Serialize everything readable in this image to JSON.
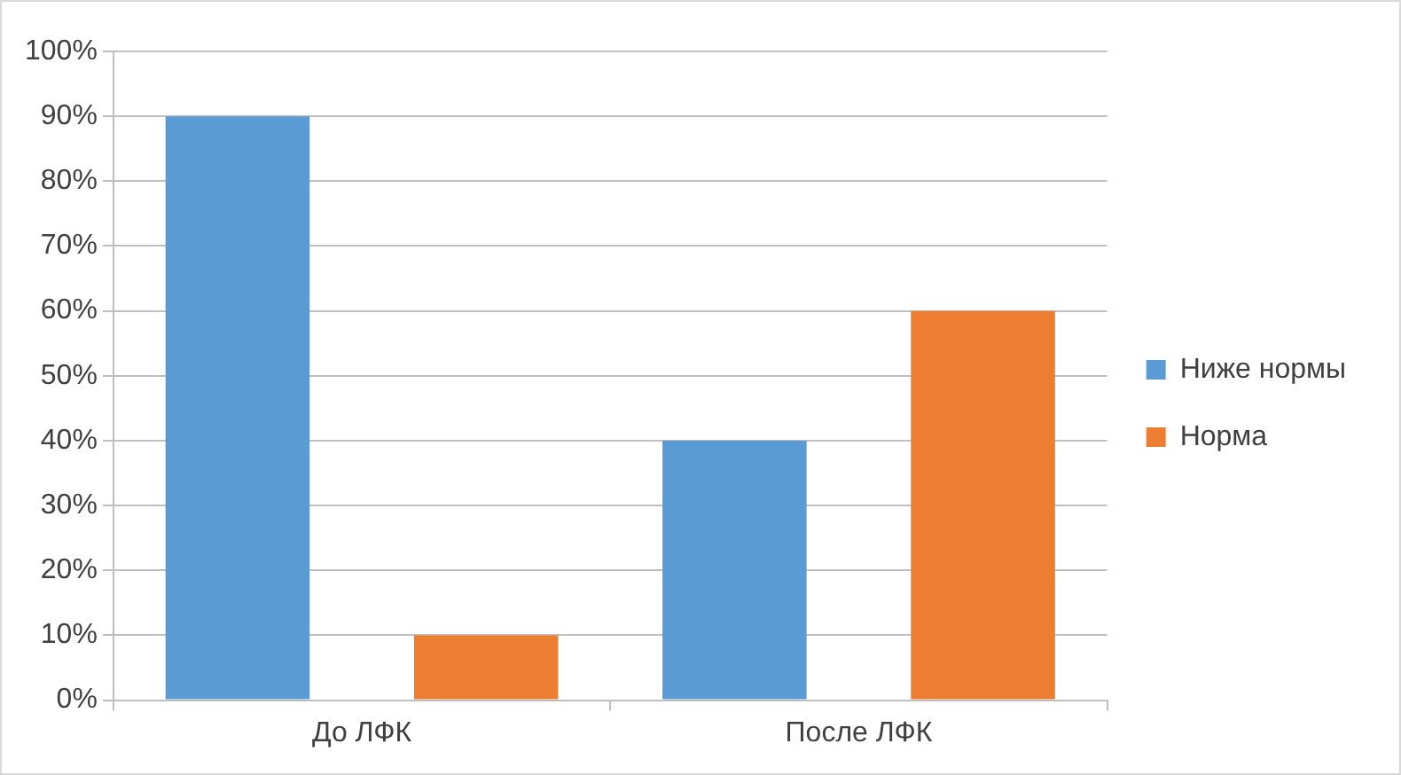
{
  "chart_data": {
    "type": "bar",
    "categories": [
      "До ЛФК",
      "После ЛФК"
    ],
    "series": [
      {
        "name": "Ниже нормы",
        "color": "#5b9bd5",
        "values": [
          90,
          40
        ]
      },
      {
        "name": "Норма",
        "color": "#ed7d31",
        "values": [
          10,
          60
        ]
      }
    ],
    "ylim": [
      0,
      100
    ],
    "yticks": [
      {
        "value": 0,
        "label": "0%"
      },
      {
        "value": 10,
        "label": "10%"
      },
      {
        "value": 20,
        "label": "20%"
      },
      {
        "value": 30,
        "label": "30%"
      },
      {
        "value": 40,
        "label": "40%"
      },
      {
        "value": 50,
        "label": "50%"
      },
      {
        "value": 60,
        "label": "60%"
      },
      {
        "value": 70,
        "label": "70%"
      },
      {
        "value": 80,
        "label": "80%"
      },
      {
        "value": 90,
        "label": "90%"
      },
      {
        "value": 100,
        "label": "100%"
      }
    ],
    "grid": "y",
    "legend": "right"
  }
}
